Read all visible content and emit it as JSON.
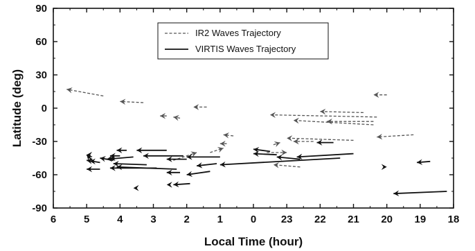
{
  "chart_data": {
    "type": "scatter",
    "subtype": "trajectory-arrows",
    "xlabel": "Local Time (hour)",
    "ylabel": "Latitude (deg)",
    "xlim": [
      18,
      6
    ],
    "ylim": [
      -90,
      90
    ],
    "x_reversed": true,
    "x_ticks": [
      6,
      5,
      4,
      3,
      2,
      1,
      0,
      23,
      22,
      21,
      20,
      19,
      18
    ],
    "y_ticks": [
      90,
      60,
      30,
      0,
      -30,
      -60,
      -90
    ],
    "grid": false,
    "legend_position": "top-center",
    "legend": [
      "IR2 Waves Trajectory",
      "VIRTIS Waves Trajectory"
    ],
    "colors": {
      "ir2": "#555555",
      "virtis": "#111111",
      "axis": "#111111"
    },
    "series": [
      {
        "name": "IR2 Waves Trajectory",
        "line_style": "dashed",
        "trajectories": [
          {
            "from": [
              4.5,
              11
            ],
            "to": [
              5.6,
              17
            ]
          },
          {
            "from": [
              3.3,
              5
            ],
            "to": [
              4.0,
              6
            ]
          },
          {
            "from": [
              1.4,
              1
            ],
            "to": [
              1.8,
              1
            ]
          },
          {
            "from": [
              2.2,
              -9
            ],
            "to": [
              2.4,
              -8
            ]
          },
          {
            "from": [
              2.6,
              -7
            ],
            "to": [
              2.8,
              -7
            ]
          },
          {
            "from": [
              0.6,
              -25
            ],
            "to": [
              0.9,
              -24
            ]
          },
          {
            "from": [
              0.8,
              -32
            ],
            "to": [
              1.0,
              -32
            ]
          },
          {
            "from": [
              2.4,
              -47
            ],
            "to": [
              1.7,
              -40
            ]
          },
          {
            "from": [
              1.3,
              -40
            ],
            "to": [
              0.9,
              -36
            ]
          },
          {
            "from": [
              23.6,
              -40
            ],
            "to": [
              23.0,
              -40
            ]
          },
          {
            "from": [
              23.4,
              -33
            ],
            "to": [
              23.2,
              -31
            ]
          },
          {
            "from": [
              20.3,
              -8
            ],
            "to": [
              23.5,
              -6
            ]
          },
          {
            "from": [
              20.7,
              -4
            ],
            "to": [
              22.0,
              -3
            ]
          },
          {
            "from": [
              20.4,
              -15
            ],
            "to": [
              22.8,
              -11
            ]
          },
          {
            "from": [
              20.4,
              -12
            ],
            "to": [
              21.8,
              -12
            ]
          },
          {
            "from": [
              21.0,
              -29
            ],
            "to": [
              23.0,
              -27
            ]
          },
          {
            "from": [
              22.2,
              -30
            ],
            "to": [
              22.8,
              -30
            ]
          },
          {
            "from": [
              22.6,
              -53
            ],
            "to": [
              23.4,
              -51
            ]
          },
          {
            "from": [
              19.2,
              -24
            ],
            "to": [
              20.3,
              -26
            ]
          },
          {
            "from": [
              20.0,
              12
            ],
            "to": [
              20.4,
              12
            ]
          }
        ]
      },
      {
        "name": "VIRTIS Waves Trajectory",
        "line_style": "solid",
        "trajectories": [
          {
            "from": [
              4.8,
              -48
            ],
            "to": [
              5.0,
              -42
            ]
          },
          {
            "from": [
              4.6,
              -49
            ],
            "to": [
              5.0,
              -47
            ]
          },
          {
            "from": [
              4.6,
              -55
            ],
            "to": [
              5.0,
              -55
            ]
          },
          {
            "from": [
              4.2,
              -47
            ],
            "to": [
              4.6,
              -45
            ]
          },
          {
            "from": [
              4.0,
              -43
            ],
            "to": [
              4.3,
              -43
            ]
          },
          {
            "from": [
              3.8,
              -38
            ],
            "to": [
              4.1,
              -38
            ]
          },
          {
            "from": [
              3.6,
              -44
            ],
            "to": [
              4.4,
              -46
            ]
          },
          {
            "from": [
              3.2,
              -51
            ],
            "to": [
              4.2,
              -50
            ]
          },
          {
            "from": [
              2.6,
              -38
            ],
            "to": [
              3.5,
              -38
            ]
          },
          {
            "from": [
              2.1,
              -43
            ],
            "to": [
              3.3,
              -43
            ]
          },
          {
            "from": [
              2.0,
              -46
            ],
            "to": [
              2.6,
              -46
            ]
          },
          {
            "from": [
              2.3,
              -55
            ],
            "to": [
              4.1,
              -53
            ]
          },
          {
            "from": [
              2.9,
              -54
            ],
            "to": [
              4.3,
              -54
            ]
          },
          {
            "from": [
              2.2,
              -58
            ],
            "to": [
              2.6,
              -58
            ]
          },
          {
            "from": [
              1.0,
              -44
            ],
            "to": [
              2.0,
              -44
            ]
          },
          {
            "from": [
              1.1,
              -50
            ],
            "to": [
              1.7,
              -52
            ]
          },
          {
            "from": [
              1.3,
              -57
            ],
            "to": [
              2.0,
              -60
            ]
          },
          {
            "from": [
              1.9,
              -68
            ],
            "to": [
              2.4,
              -69
            ]
          },
          {
            "from": [
              -0.5,
              -39
            ],
            "to": [
              0.0,
              -37
            ]
          },
          {
            "from": [
              -0.7,
              -42
            ],
            "to": [
              0.0,
              -41
            ]
          },
          {
            "from": [
              -1.4,
              -46
            ],
            "to": [
              -0.7,
              -44
            ]
          },
          {
            "from": [
              -3.0,
              -41
            ],
            "to": [
              -1.3,
              -44
            ]
          },
          {
            "from": [
              -2.6,
              -45
            ],
            "to": [
              1.0,
              -51
            ]
          },
          {
            "from": [
              -2.4,
              -31
            ],
            "to": [
              -1.9,
              -31
            ]
          },
          {
            "from": [
              -5.8,
              -75
            ],
            "to": [
              -4.2,
              -77
            ]
          },
          {
            "from": [
              -5.3,
              -48
            ],
            "to": [
              -4.9,
              -49
            ]
          }
        ]
      }
    ],
    "marker_only_points": [
      {
        "x": 5.0,
        "y": -42,
        "dir": 1
      },
      {
        "x": 3.6,
        "y": -72,
        "dir": 1
      },
      {
        "x": 2.6,
        "y": -69,
        "dir": 1
      },
      {
        "x": 4.3,
        "y": -45,
        "dir": 1
      },
      {
        "x": 4.9,
        "y": -48,
        "dir": 1
      },
      {
        "x": 20.0,
        "y": -53,
        "dir": -1
      }
    ]
  }
}
